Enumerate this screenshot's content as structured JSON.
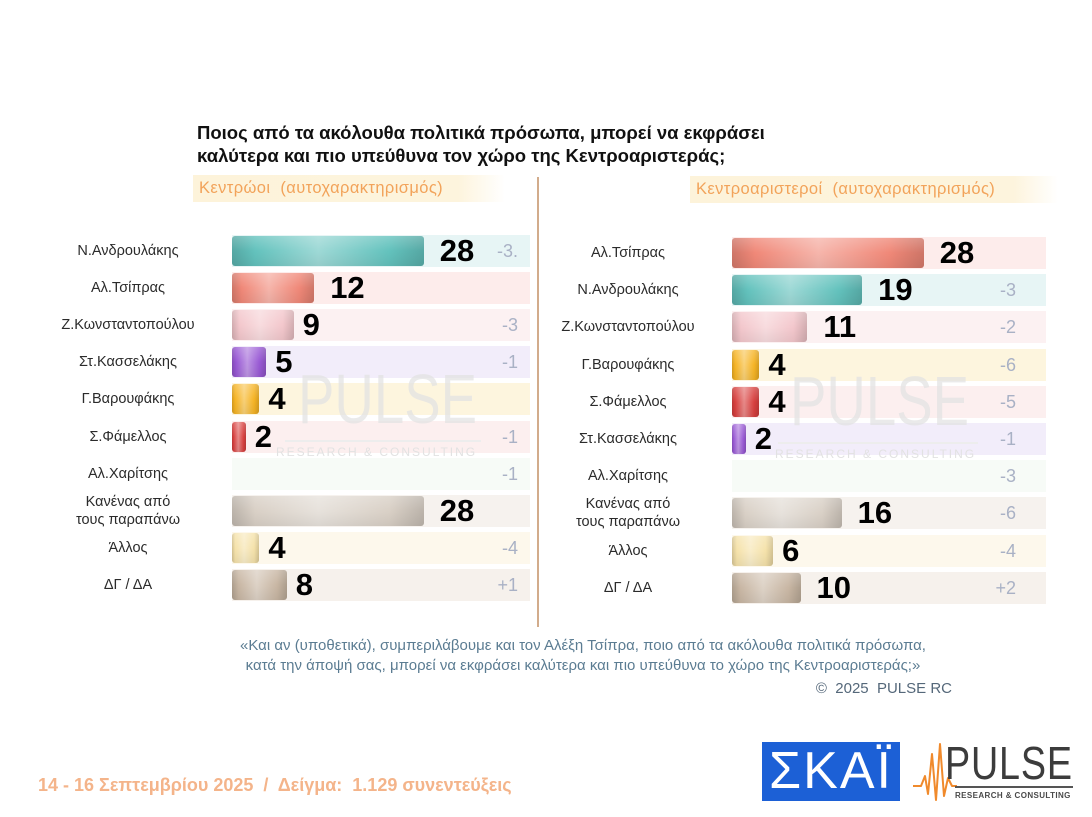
{
  "title": {
    "line1": "Ποιος από τα ακόλουθα πολιτικά πρόσωπα, μπορεί να εκφράσει",
    "line2": "καλύτερα και πιο υπεύθυνα τον χώρο της Κεντροαριστεράς;"
  },
  "chart_data": [
    {
      "type": "bar",
      "orientation": "horizontal",
      "subtitle": "Κεντρώοι  (αυτοχαρακτηρισμός)",
      "categories": [
        "Ν.Ανδρουλάκης",
        "Αλ.Τσίπρας",
        "Ζ.Κωνσταντοπούλου",
        "Στ.Κασσελάκης",
        "Γ.Βαρουφάκης",
        "Σ.Φάμελλος",
        "Αλ.Χαρίτσης",
        "Κανένας από\nτους παραπάνω",
        "Άλλος",
        "ΔΓ / ΔΑ"
      ],
      "values": [
        28,
        12,
        9,
        5,
        4,
        2,
        null,
        28,
        4,
        8
      ],
      "changes": [
        "-3.",
        null,
        "-3",
        "-1",
        null,
        "-1",
        "-1",
        null,
        "-4",
        "+1"
      ],
      "bar_colors": [
        "#63c2bd",
        "#f08878",
        "#f3c7cc",
        "#9858d4",
        "#f6b425",
        "#d8403f",
        "#9fd3a6",
        "#d9d0c6",
        "#f5e2aa",
        "#c8b6a3"
      ],
      "track_colors": [
        "#e7f5f5",
        "#fdeceb",
        "#fcf1f2",
        "#f2edfa",
        "#fdf5de",
        "#fcefef",
        "#f7fbf7",
        "#f6f2ee",
        "#fdf8ec",
        "#f6f1ec"
      ]
    },
    {
      "type": "bar",
      "orientation": "horizontal",
      "subtitle": "Κεντροαριστεροί  (αυτοχαρακτηρισμός)",
      "categories": [
        "Αλ.Τσίπρας",
        "Ν.Ανδρουλάκης",
        "Ζ.Κωνσταντοπούλου",
        "Γ.Βαρουφάκης",
        "Σ.Φάμελλος",
        "Στ.Κασσελάκης",
        "Αλ.Χαρίτσης",
        "Κανένας από\nτους παραπάνω",
        "Άλλος",
        "ΔΓ / ΔΑ"
      ],
      "values": [
        28,
        19,
        11,
        4,
        4,
        2,
        null,
        16,
        6,
        10
      ],
      "changes": [
        null,
        "-3",
        "-2",
        "-6",
        "-5",
        "-1",
        "-3",
        "-6",
        "-4",
        "+2"
      ],
      "bar_colors": [
        "#f08878",
        "#63c2bd",
        "#f3c7cc",
        "#f6b425",
        "#d8403f",
        "#9858d4",
        "#9fd3a6",
        "#d9d0c6",
        "#f5e2aa",
        "#c8b6a3"
      ],
      "track_colors": [
        "#fdeceb",
        "#e7f5f5",
        "#fcf1f2",
        "#fdf5de",
        "#fcefef",
        "#f2edfa",
        "#f7fbf7",
        "#f6f2ee",
        "#fdf8ec",
        "#f6f1ec"
      ]
    }
  ],
  "watermark": {
    "brand": "PULSE",
    "tagline": "RESEARCH & CONSULTING"
  },
  "footer": {
    "question_line1": "«Και αν (υποθετικά), συμπεριλάβουμε και τον Αλέξη Τσίπρα, ποιο από τα ακόλουθα πολιτικά πρόσωπα,",
    "question_line2": "κατά την άποψή σας, μπορεί να εκφράσει καλύτερα και πιο υπεύθυνα το χώρο της Κεντροαριστεράς;»",
    "copyright": "©  2025  PULSE RC",
    "fieldwork": "14 - 16 Σεπτεμβρίου 2025  /  Δείγμα:  1.129 συνεντεύξεις"
  },
  "logos": {
    "skai": "ΣΚΑΪ",
    "pulse": "PULSE",
    "pulse_tagline": "RESEARCH & CONSULTING"
  },
  "colors": {
    "title": "#111111",
    "subtitle": "#f2a35a",
    "divider": "#d2ac8c",
    "change": "#a9b1c5",
    "footer": "#5b7c92",
    "fieldwork": "#f4b48a",
    "skai_blue": "#1c60d6",
    "pulse_orange": "#f08a2c",
    "pulse_text": "#3c3c3c"
  }
}
